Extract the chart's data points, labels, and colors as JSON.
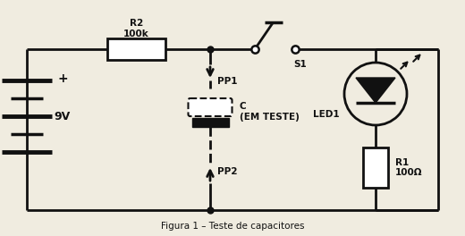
{
  "title": "Figura 1 – Teste de capacitores",
  "bg_color": "#f0ece0",
  "line_color": "#111111",
  "lw": 2.0,
  "r2_label": "R2\n100k",
  "r1_label": "R1\n100Ω",
  "s1_label": "S1",
  "led_label": "LED1",
  "c_label": "C\n(EM TESTE)",
  "pp1_label": "PP1",
  "pp2_label": "PP2",
  "bv_label": "9V"
}
